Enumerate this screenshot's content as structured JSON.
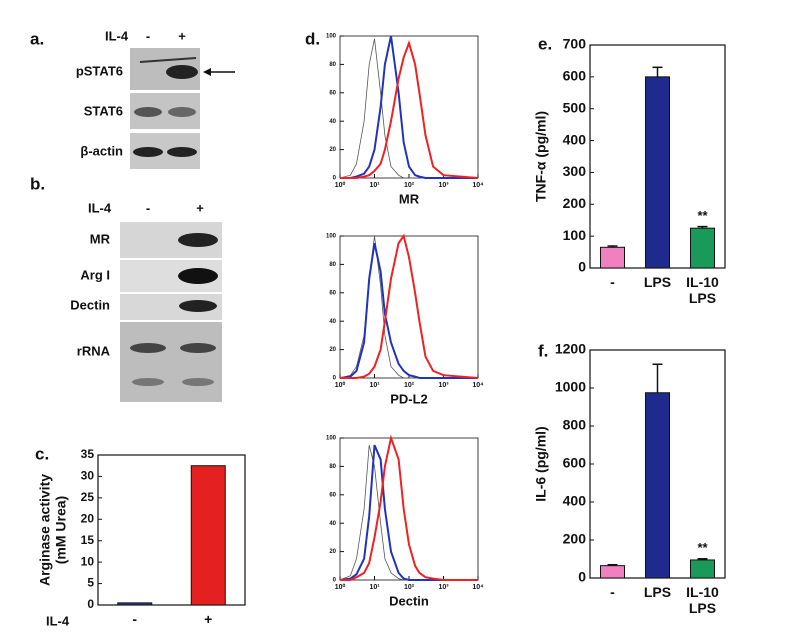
{
  "panel_a": {
    "label": "a.",
    "treatment": "IL-4",
    "conditions": [
      "-",
      "+"
    ],
    "rows": [
      "pSTAT6",
      "STAT6",
      "β-actin"
    ]
  },
  "panel_b": {
    "label": "b.",
    "treatment": "IL-4",
    "conditions": [
      "-",
      "+"
    ],
    "rows": [
      "MR",
      "Arg I",
      "Dectin",
      "rRNA"
    ]
  },
  "chart_data": [
    {
      "type": "bar",
      "panel_label": "c.",
      "ylabel": [
        "Arginase activity",
        "(mM Urea)"
      ],
      "xlabel": "IL-4",
      "categories": [
        "-",
        "+"
      ],
      "values": [
        0.5,
        32.5
      ],
      "colors": [
        "#2a3a9a",
        "#e52020"
      ],
      "ylim": [
        0,
        35
      ],
      "yticks": [
        0,
        5,
        10,
        15,
        20,
        25,
        30,
        35
      ]
    },
    {
      "type": "line",
      "panel_label": "d.",
      "xlabel": "MR",
      "log_x": true,
      "x": [
        1,
        2,
        3,
        5,
        7,
        10,
        15,
        20,
        30,
        50,
        70,
        100,
        150,
        200,
        300,
        500,
        1000,
        10000
      ],
      "series": [
        {
          "color": "#555555",
          "values": [
            0,
            2,
            10,
            40,
            80,
            98,
            60,
            30,
            8,
            2,
            0,
            0,
            0,
            0,
            0,
            0,
            0,
            0
          ]
        },
        {
          "color": "#2233bb",
          "values": [
            0,
            0,
            1,
            3,
            8,
            20,
            50,
            80,
            100,
            60,
            25,
            8,
            2,
            1,
            0,
            0,
            0,
            0
          ]
        },
        {
          "color": "#ee2222",
          "values": [
            0,
            0,
            0,
            1,
            2,
            5,
            10,
            20,
            40,
            70,
            85,
            95,
            80,
            60,
            30,
            8,
            2,
            0
          ]
        }
      ],
      "xlim": [
        1,
        10000
      ],
      "xticks": [
        {
          "value": 1,
          "label": "10⁰"
        },
        {
          "value": 10,
          "label": "10¹"
        },
        {
          "value": 100,
          "label": "10²"
        },
        {
          "value": 1000,
          "label": "10³"
        },
        {
          "value": 10000,
          "label": "10⁴"
        }
      ],
      "ylim": [
        0,
        100
      ],
      "yticks": [
        0,
        20,
        40,
        60,
        80,
        100
      ]
    },
    {
      "type": "line",
      "xlabel": "PD-L2",
      "log_x": true,
      "x": [
        1,
        2,
        3,
        5,
        7,
        10,
        15,
        20,
        30,
        50,
        70,
        100,
        150,
        200,
        300,
        500,
        1000,
        10000
      ],
      "series": [
        {
          "color": "#555555",
          "values": [
            0,
            2,
            8,
            30,
            70,
            100,
            65,
            30,
            8,
            2,
            0,
            0,
            0,
            0,
            0,
            0,
            0,
            0
          ]
        },
        {
          "color": "#2233bb",
          "values": [
            0,
            1,
            5,
            25,
            70,
            95,
            75,
            45,
            25,
            10,
            5,
            2,
            1,
            0,
            0,
            0,
            0,
            0
          ]
        },
        {
          "color": "#ee2222",
          "values": [
            0,
            0,
            0,
            1,
            3,
            8,
            20,
            40,
            70,
            95,
            100,
            85,
            60,
            40,
            15,
            5,
            2,
            0
          ]
        }
      ],
      "xlim": [
        1,
        10000
      ],
      "xticks": [
        {
          "value": 1,
          "label": "10⁰"
        },
        {
          "value": 10,
          "label": "10¹"
        },
        {
          "value": 100,
          "label": "10²"
        },
        {
          "value": 1000,
          "label": "10³"
        },
        {
          "value": 10000,
          "label": "10⁴"
        }
      ],
      "ylim": [
        0,
        100
      ],
      "yticks": [
        0,
        20,
        40,
        60,
        80,
        100
      ]
    },
    {
      "type": "line",
      "xlabel": "Dectin",
      "log_x": true,
      "x": [
        1,
        2,
        3,
        5,
        7,
        10,
        15,
        20,
        30,
        50,
        70,
        100,
        150,
        200,
        300,
        500,
        1000,
        10000
      ],
      "series": [
        {
          "color": "#555555",
          "values": [
            0,
            3,
            15,
            50,
            95,
            80,
            40,
            15,
            5,
            1,
            0,
            0,
            0,
            0,
            0,
            0,
            0,
            0
          ]
        },
        {
          "color": "#2233bb",
          "values": [
            0,
            1,
            4,
            15,
            45,
            95,
            85,
            50,
            20,
            5,
            1,
            0,
            0,
            0,
            0,
            0,
            0,
            0
          ]
        },
        {
          "color": "#ee2222",
          "values": [
            0,
            0,
            2,
            5,
            12,
            30,
            55,
            80,
            100,
            85,
            50,
            25,
            10,
            5,
            2,
            1,
            0,
            0
          ]
        }
      ],
      "xlim": [
        1,
        10000
      ],
      "xticks": [
        {
          "value": 1,
          "label": "10⁰"
        },
        {
          "value": 10,
          "label": "10¹"
        },
        {
          "value": 100,
          "label": "10²"
        },
        {
          "value": 1000,
          "label": "10³"
        },
        {
          "value": 10000,
          "label": "10⁴"
        }
      ],
      "ylim": [
        0,
        100
      ],
      "yticks": [
        0,
        20,
        40,
        60,
        80,
        100
      ]
    },
    {
      "type": "bar",
      "panel_label": "e.",
      "ylabel": [
        "TNF-α (pg/ml)"
      ],
      "categories": [
        "-",
        "LPS",
        "IL-10 LPS"
      ],
      "values": [
        65,
        600,
        125
      ],
      "errors": [
        4,
        30,
        5
      ],
      "annotations": [
        null,
        null,
        "**"
      ],
      "colors": [
        "#f080c0",
        "#1e2a8c",
        "#1a9a5a"
      ],
      "ylim": [
        0,
        700
      ],
      "yticks": [
        0,
        100,
        200,
        300,
        400,
        500,
        600,
        700
      ]
    },
    {
      "type": "bar",
      "panel_label": "f.",
      "ylabel": [
        "IL-6 (pg/ml)"
      ],
      "categories": [
        "-",
        "LPS",
        "IL-10 LPS"
      ],
      "values": [
        65,
        975,
        95
      ],
      "errors": [
        5,
        150,
        6
      ],
      "annotations": [
        null,
        null,
        "**"
      ],
      "colors": [
        "#f080c0",
        "#1e2a8c",
        "#1a9a5a"
      ],
      "ylim": [
        0,
        1200
      ],
      "yticks": [
        0,
        200,
        400,
        600,
        800,
        1000,
        1200
      ]
    }
  ]
}
